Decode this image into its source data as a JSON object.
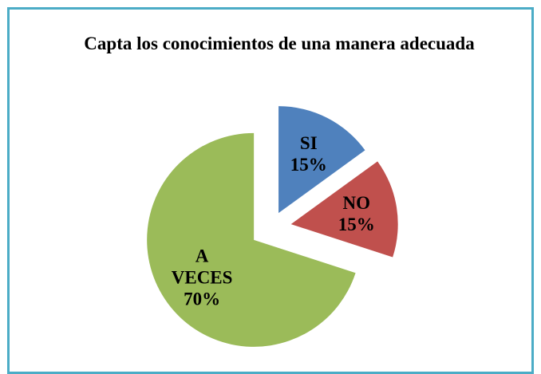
{
  "chart_data": {
    "type": "pie",
    "title": "Capta los conocimientos de una manera adecuada",
    "categories": [
      "SI",
      "NO",
      "A VECES"
    ],
    "values": [
      15,
      15,
      70
    ],
    "value_labels": [
      "15%",
      "15%",
      "70%"
    ],
    "colors": [
      "#4f81bd",
      "#c0504d",
      "#9bbb59"
    ],
    "exploded": true
  }
}
